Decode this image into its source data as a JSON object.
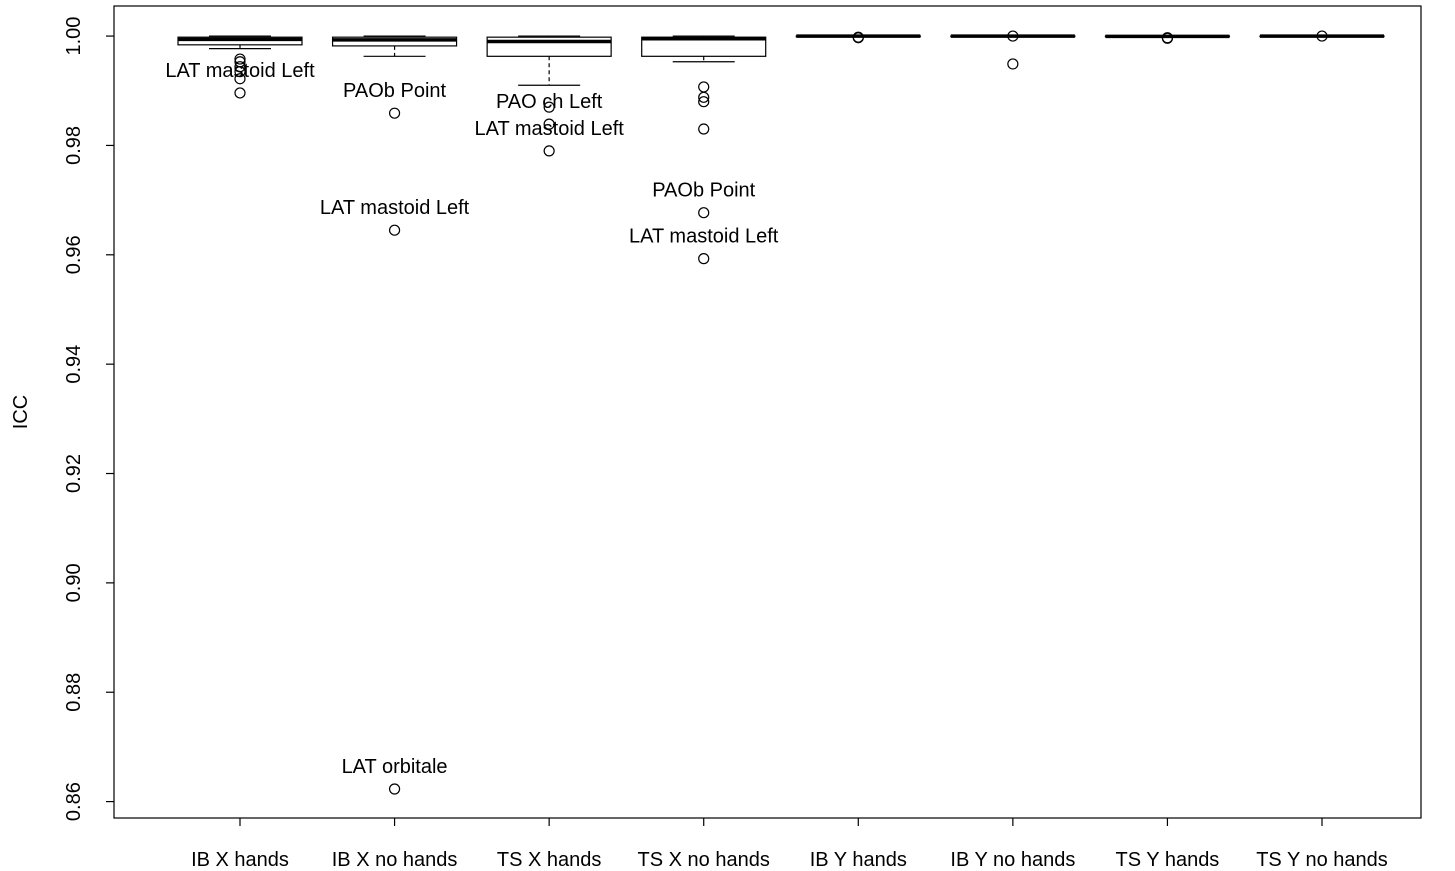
{
  "chart_data": {
    "type": "boxplot",
    "title": "",
    "xlabel": "",
    "ylabel": "ICC",
    "ylim": [
      0.857,
      1.0055
    ],
    "yticks": [
      "0.86",
      "0.88",
      "0.90",
      "0.92",
      "0.94",
      "0.96",
      "0.98",
      "1.00"
    ],
    "grid": false,
    "categories": [
      "IB X hands",
      "IB X no hands",
      "TS X hands",
      "TS X no hands",
      "IB Y hands",
      "IB Y no hands",
      "TS Y hands",
      "TS Y no hands"
    ],
    "boxes": [
      {
        "name": "IB X hands",
        "q1": 0.9984,
        "median": 0.9994,
        "q3": 0.9998,
        "whisker_low": 0.9977,
        "whisker_high": 1.0,
        "outliers": [
          0.9958,
          0.9953,
          0.9944,
          0.9935,
          0.9922,
          0.9896
        ],
        "labels": [
          {
            "text": "LAT mastoid Left",
            "value": 0.9896
          }
        ]
      },
      {
        "name": "IB X no hands",
        "q1": 0.9982,
        "median": 0.9993,
        "q3": 0.9998,
        "whisker_low": 0.9963,
        "whisker_high": 1.0,
        "outliers": [
          0.9859,
          0.9645,
          0.8623
        ],
        "labels": [
          {
            "text": "PAOb Point",
            "value": 0.9859
          },
          {
            "text": "LAT mastoid Left",
            "value": 0.9645
          },
          {
            "text": "LAT orbitale",
            "value": 0.8623
          }
        ]
      },
      {
        "name": "TS X hands",
        "q1": 0.9963,
        "median": 0.999,
        "q3": 0.9998,
        "whisker_low": 0.991,
        "whisker_high": 1.0,
        "outliers": [
          0.987,
          0.9839,
          0.979
        ],
        "labels": [
          {
            "text": "PAO ch Left",
            "value": 0.9839
          },
          {
            "text": "LAT mastoid Left",
            "value": 0.979
          }
        ]
      },
      {
        "name": "TS X no hands",
        "q1": 0.9963,
        "median": 0.9995,
        "q3": 0.9998,
        "whisker_low": 0.9953,
        "whisker_high": 1.0,
        "outliers": [
          0.9907,
          0.9888,
          0.988,
          0.983,
          0.9677,
          0.9593
        ],
        "labels": [
          {
            "text": "PAOb Point",
            "value": 0.9677
          },
          {
            "text": "LAT mastoid Left",
            "value": 0.9593
          }
        ]
      },
      {
        "name": "IB Y hands",
        "q1": 0.9999,
        "median": 1.0,
        "q3": 1.0,
        "whisker_low": 0.9999,
        "whisker_high": 1.0,
        "outliers": [
          0.9998,
          0.9997
        ],
        "labels": []
      },
      {
        "name": "IB Y no hands",
        "q1": 0.9999,
        "median": 1.0,
        "q3": 1.0,
        "whisker_low": 0.9999,
        "whisker_high": 1.0,
        "outliers": [
          1.0,
          0.9949
        ],
        "labels": []
      },
      {
        "name": "TS Y hands",
        "q1": 0.9999,
        "median": 0.99995,
        "q3": 1.0,
        "whisker_low": 0.9999,
        "whisker_high": 1.0,
        "outliers": [
          0.9997,
          0.9996
        ],
        "labels": []
      },
      {
        "name": "TS Y no hands",
        "q1": 0.9999,
        "median": 1.0,
        "q3": 1.0,
        "whisker_low": 0.9999,
        "whisker_high": 1.0,
        "outliers": [
          1.0
        ],
        "labels": []
      }
    ]
  }
}
